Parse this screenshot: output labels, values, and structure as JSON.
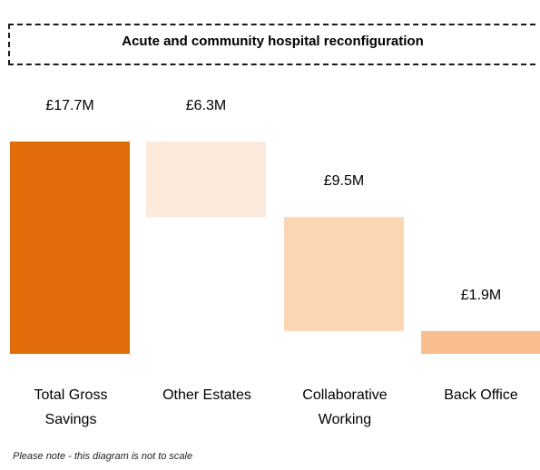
{
  "title": "Acute and community hospital reconfiguration",
  "note": "Please note - this diagram is not to scale",
  "chart_data": {
    "type": "bar",
    "subtype": "waterfall",
    "title": "Acute and community hospital reconfiguration",
    "categories": [
      "Total Gross Savings",
      "Other Estates",
      "Collaborative Working",
      "Back Office"
    ],
    "values": [
      17.7,
      6.3,
      9.5,
      1.9
    ],
    "value_labels": [
      "£17.7M",
      "£6.3M",
      "£9.5M",
      "£1.9M"
    ],
    "unit": "£M",
    "colors": [
      "#e36c0a",
      "#fbe9db",
      "#fbd5b4",
      "#f9be8f"
    ],
    "xlabel": "",
    "ylabel": "",
    "grid": false,
    "legend": "none"
  }
}
